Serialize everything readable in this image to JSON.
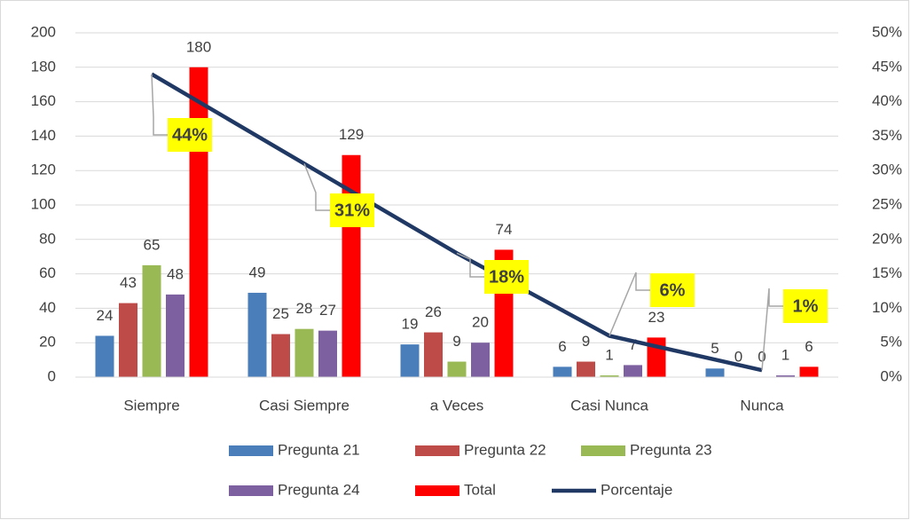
{
  "chart_data": {
    "type": "bar",
    "categories": [
      "Siempre",
      "Casi Siempre",
      "a Veces",
      "Casi Nunca",
      "Nunca"
    ],
    "series": [
      {
        "name": "Pregunta 21",
        "color": "#4a7ebb",
        "values": [
          24,
          49,
          19,
          6,
          5
        ]
      },
      {
        "name": "Pregunta 22",
        "color": "#be4b48",
        "values": [
          43,
          25,
          26,
          9,
          0
        ]
      },
      {
        "name": "Pregunta 23",
        "color": "#98b954",
        "values": [
          65,
          28,
          9,
          1,
          0
        ]
      },
      {
        "name": "Pregunta 24",
        "color": "#7d60a0",
        "values": [
          48,
          27,
          20,
          7,
          1
        ]
      },
      {
        "name": "Total",
        "color": "#ff0000",
        "values": [
          180,
          129,
          74,
          23,
          6
        ]
      },
      {
        "name": "Porcentaje",
        "color": "#1f3864",
        "type": "line",
        "axis": "y2",
        "values": [
          44,
          31,
          18,
          6,
          1
        ],
        "value_labels": [
          "44%",
          "31%",
          "18%",
          "6%",
          "1%"
        ]
      }
    ],
    "ylim": [
      0,
      200
    ],
    "yticks": [
      0,
      20,
      40,
      60,
      80,
      100,
      120,
      140,
      160,
      180,
      200
    ],
    "y2lim": [
      0,
      50
    ],
    "y2ticks": [
      {
        "value": 0,
        "label": "0%"
      },
      {
        "value": 5,
        "label": "5%"
      },
      {
        "value": 10,
        "label": "10%"
      },
      {
        "value": 15,
        "label": "15%"
      },
      {
        "value": 20,
        "label": "20%"
      },
      {
        "value": 25,
        "label": "25%"
      },
      {
        "value": 30,
        "label": "30%"
      },
      {
        "value": 35,
        "label": "35%"
      },
      {
        "value": 40,
        "label": "40%"
      },
      {
        "value": 45,
        "label": "45%"
      },
      {
        "value": 50,
        "label": "50%"
      }
    ],
    "grid": true,
    "legend": "bottom"
  }
}
